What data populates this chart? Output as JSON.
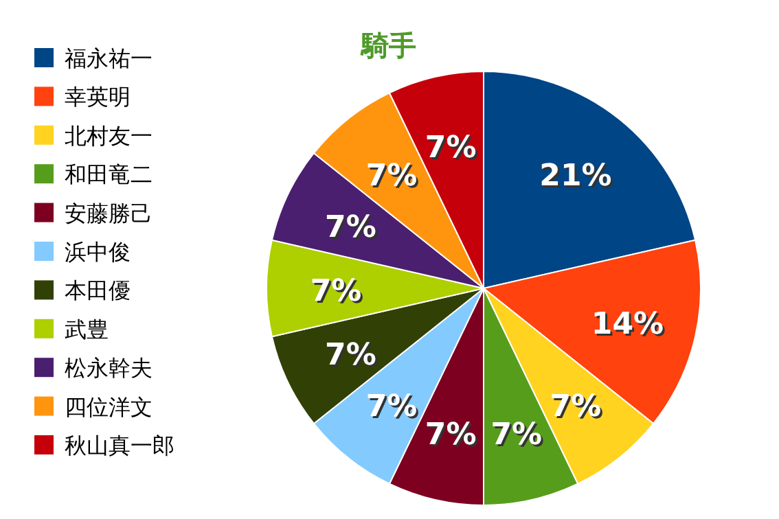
{
  "chart_data": {
    "type": "pie",
    "title": "騎手",
    "legend": "left",
    "value_labels": [
      "21%",
      "14%",
      "7%",
      "7%",
      "7%",
      "7%",
      "7%",
      "7%",
      "7%",
      "7%",
      "7%"
    ],
    "categories": [
      "福永祐一",
      "幸英明",
      "北村友一",
      "和田竜二",
      "安藤勝己",
      "浜中俊",
      "本田優",
      "武豊",
      "松永幹夫",
      "四位洋文",
      "秋山真一郎"
    ],
    "values": [
      21,
      14,
      7,
      7,
      7,
      7,
      7,
      7,
      7,
      7,
      7
    ],
    "colors": [
      "#004586",
      "#ff420e",
      "#ffd320",
      "#579d1c",
      "#7e0021",
      "#83caff",
      "#314004",
      "#aecf00",
      "#4b1f6f",
      "#ff950e",
      "#c5000b"
    ]
  }
}
